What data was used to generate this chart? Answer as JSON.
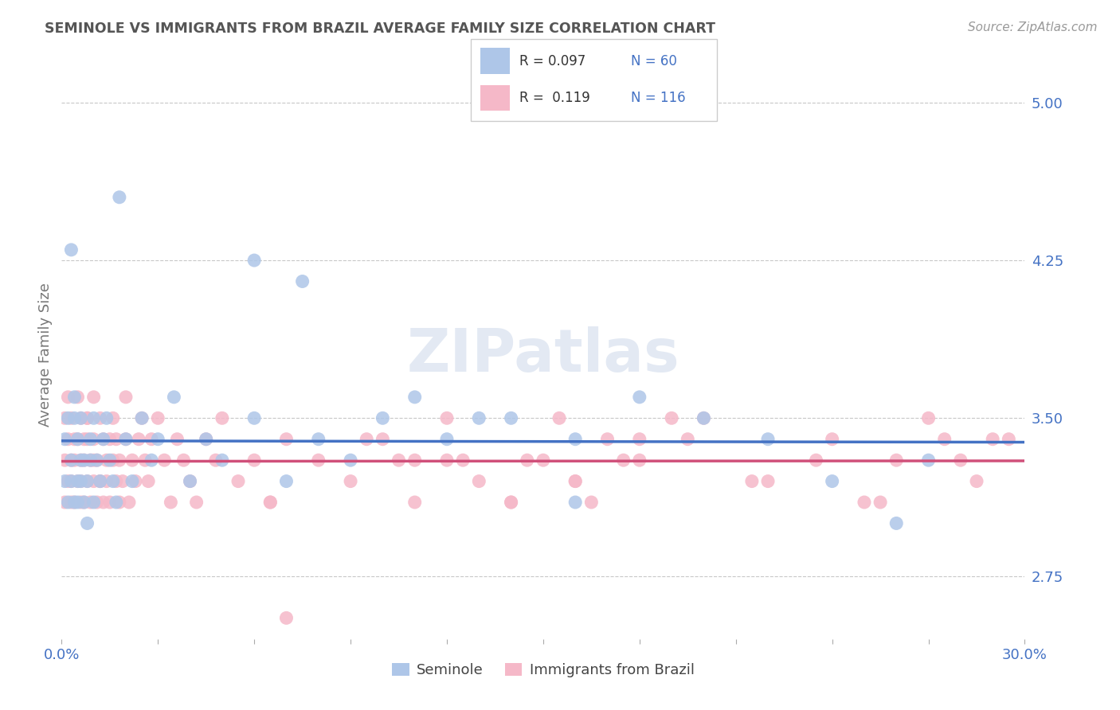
{
  "title": "SEMINOLE VS IMMIGRANTS FROM BRAZIL AVERAGE FAMILY SIZE CORRELATION CHART",
  "source_text": "Source: ZipAtlas.com",
  "ylabel": "Average Family Size",
  "xmin": 0.0,
  "xmax": 0.3,
  "ymin": 2.45,
  "ymax": 5.15,
  "yticks": [
    2.75,
    3.5,
    4.25,
    5.0
  ],
  "xticks": [
    0.0,
    0.03,
    0.06,
    0.09,
    0.12,
    0.15,
    0.18,
    0.21,
    0.24,
    0.27,
    0.3
  ],
  "background_color": "#ffffff",
  "grid_color": "#c8c8c8",
  "title_color": "#555555",
  "axis_color": "#4472c4",
  "watermark": "ZIPatlas",
  "legend_r1": "R = 0.097",
  "legend_n1": "N = 60",
  "legend_r2": "R =  0.119",
  "legend_n2": "N = 116",
  "series1_color": "#aec6e8",
  "series2_color": "#f5b8c8",
  "line1_color": "#4472c4",
  "line2_color": "#d0507a",
  "series1_name": "Seminole",
  "series2_name": "Immigrants from Brazil",
  "seminole_x": [
    0.001,
    0.001,
    0.002,
    0.002,
    0.003,
    0.003,
    0.003,
    0.004,
    0.004,
    0.004,
    0.005,
    0.005,
    0.005,
    0.006,
    0.006,
    0.006,
    0.007,
    0.007,
    0.008,
    0.008,
    0.009,
    0.009,
    0.01,
    0.01,
    0.011,
    0.012,
    0.013,
    0.014,
    0.015,
    0.016,
    0.017,
    0.018,
    0.02,
    0.022,
    0.025,
    0.028,
    0.03,
    0.035,
    0.04,
    0.045,
    0.05,
    0.06,
    0.07,
    0.08,
    0.09,
    0.1,
    0.11,
    0.12,
    0.14,
    0.16,
    0.18,
    0.2,
    0.22,
    0.24,
    0.26,
    0.06,
    0.075,
    0.13,
    0.16,
    0.27
  ],
  "seminole_y": [
    3.2,
    3.4,
    3.1,
    3.5,
    4.3,
    3.3,
    3.2,
    3.1,
    3.5,
    3.6,
    3.2,
    3.4,
    3.1,
    3.3,
    3.5,
    3.2,
    3.3,
    3.1,
    3.2,
    3.0,
    3.4,
    3.3,
    3.5,
    3.1,
    3.3,
    3.2,
    3.4,
    3.5,
    3.3,
    3.2,
    3.1,
    4.55,
    3.4,
    3.2,
    3.5,
    3.3,
    3.4,
    3.6,
    3.2,
    3.4,
    3.3,
    3.5,
    3.2,
    3.4,
    3.3,
    3.5,
    3.6,
    3.4,
    3.5,
    3.1,
    3.6,
    3.5,
    3.4,
    3.2,
    3.0,
    4.25,
    4.15,
    3.5,
    3.4,
    3.3
  ],
  "brazil_x": [
    0.001,
    0.001,
    0.001,
    0.002,
    0.002,
    0.002,
    0.003,
    0.003,
    0.003,
    0.003,
    0.004,
    0.004,
    0.004,
    0.005,
    0.005,
    0.005,
    0.006,
    0.006,
    0.006,
    0.006,
    0.007,
    0.007,
    0.007,
    0.008,
    0.008,
    0.008,
    0.009,
    0.009,
    0.01,
    0.01,
    0.01,
    0.011,
    0.011,
    0.012,
    0.012,
    0.013,
    0.013,
    0.014,
    0.014,
    0.015,
    0.015,
    0.016,
    0.016,
    0.017,
    0.017,
    0.018,
    0.018,
    0.019,
    0.02,
    0.02,
    0.021,
    0.022,
    0.023,
    0.024,
    0.025,
    0.026,
    0.027,
    0.028,
    0.03,
    0.032,
    0.034,
    0.036,
    0.038,
    0.04,
    0.042,
    0.045,
    0.048,
    0.05,
    0.055,
    0.06,
    0.065,
    0.07,
    0.08,
    0.09,
    0.1,
    0.11,
    0.12,
    0.13,
    0.14,
    0.15,
    0.16,
    0.17,
    0.18,
    0.2,
    0.22,
    0.24,
    0.11,
    0.125,
    0.155,
    0.175,
    0.195,
    0.215,
    0.235,
    0.255,
    0.275,
    0.12,
    0.14,
    0.16,
    0.28,
    0.29,
    0.008,
    0.01,
    0.012,
    0.065,
    0.07,
    0.25,
    0.26,
    0.27,
    0.285,
    0.295,
    0.18,
    0.19,
    0.145,
    0.165,
    0.095,
    0.105
  ],
  "brazil_y": [
    3.1,
    3.3,
    3.5,
    3.2,
    3.4,
    3.6,
    3.1,
    3.3,
    3.5,
    3.2,
    3.4,
    3.1,
    3.3,
    3.2,
    3.4,
    3.6,
    3.1,
    3.3,
    3.5,
    3.2,
    3.4,
    3.1,
    3.3,
    3.2,
    3.5,
    3.4,
    3.1,
    3.3,
    3.2,
    3.4,
    3.6,
    3.1,
    3.3,
    3.2,
    3.5,
    3.4,
    3.1,
    3.3,
    3.2,
    3.4,
    3.1,
    3.3,
    3.5,
    3.2,
    3.4,
    3.1,
    3.3,
    3.2,
    3.4,
    3.6,
    3.1,
    3.3,
    3.2,
    3.4,
    3.5,
    3.3,
    3.2,
    3.4,
    3.5,
    3.3,
    3.1,
    3.4,
    3.3,
    3.2,
    3.1,
    3.4,
    3.3,
    3.5,
    3.2,
    3.3,
    3.1,
    3.4,
    3.3,
    3.2,
    3.4,
    3.3,
    3.5,
    3.2,
    3.1,
    3.3,
    3.2,
    3.4,
    3.3,
    3.5,
    3.2,
    3.4,
    3.1,
    3.3,
    3.5,
    3.3,
    3.4,
    3.2,
    3.3,
    3.1,
    3.4,
    3.3,
    3.1,
    3.2,
    3.3,
    3.4,
    3.5,
    3.3,
    3.2,
    3.1,
    2.55,
    3.1,
    3.3,
    3.5,
    3.2,
    3.4,
    3.4,
    3.5,
    3.3,
    3.1,
    3.4,
    3.3
  ]
}
